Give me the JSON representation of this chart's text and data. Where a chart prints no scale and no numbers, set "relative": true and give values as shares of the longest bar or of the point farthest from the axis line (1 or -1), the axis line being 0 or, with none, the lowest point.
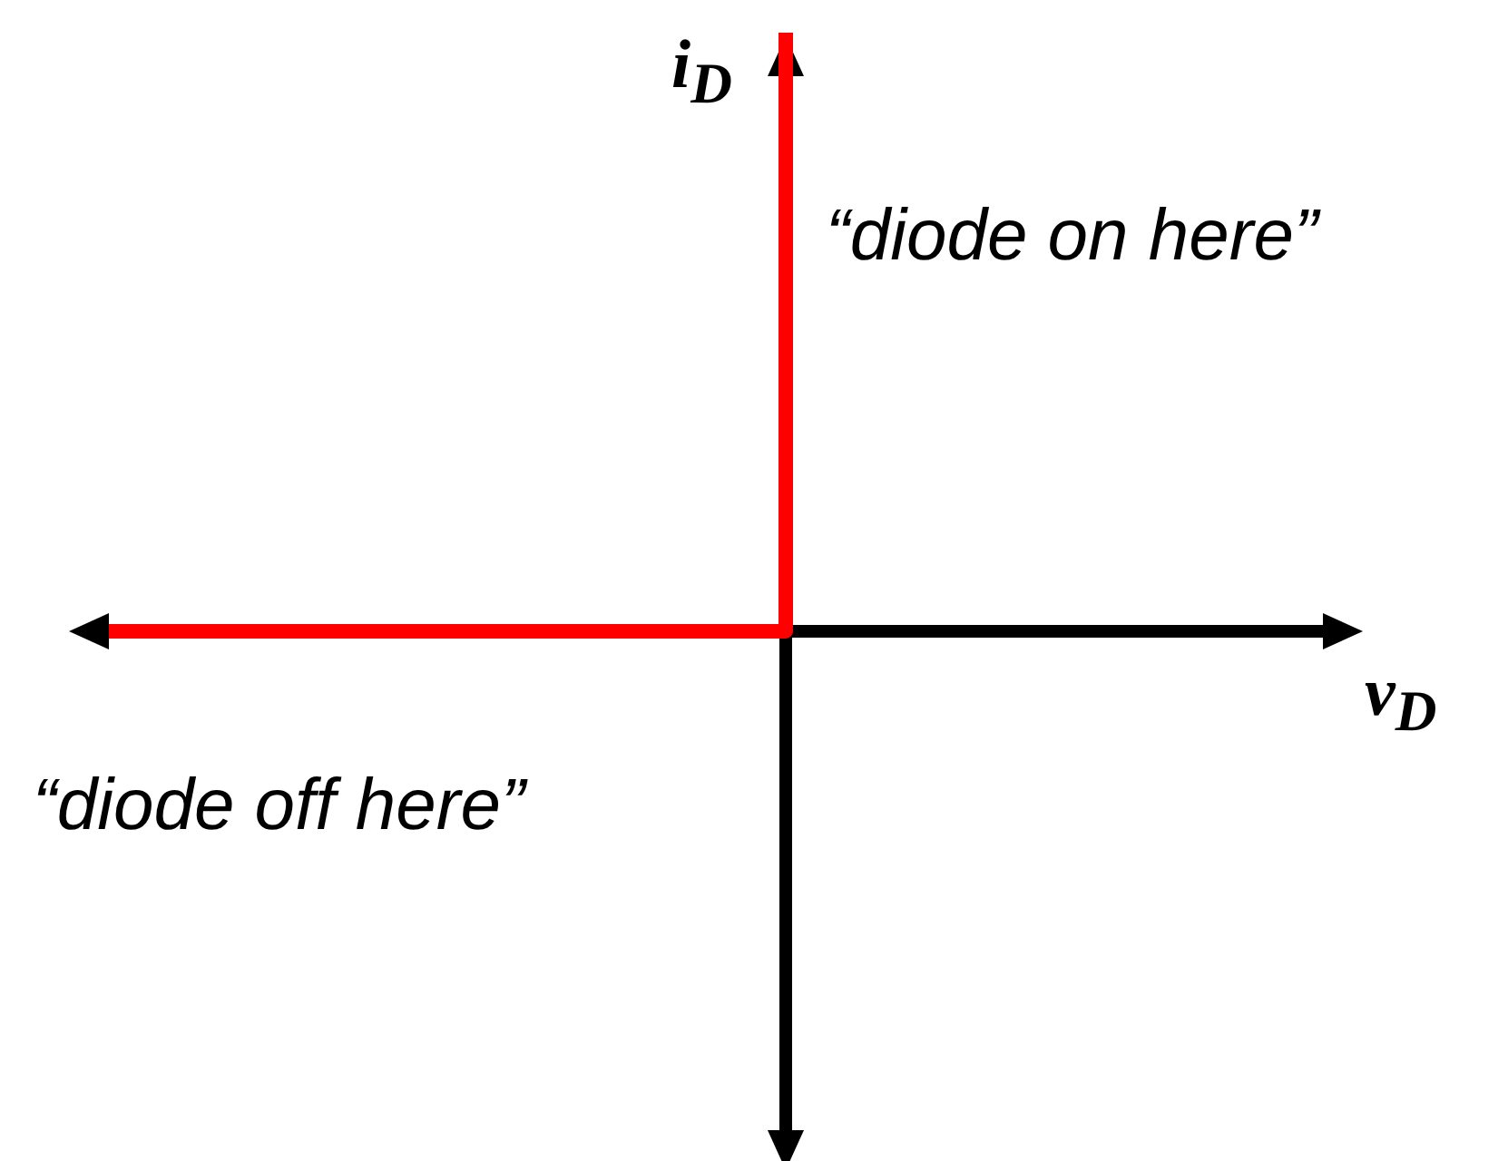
{
  "chart_data": {
    "type": "step",
    "relative": true,
    "xlabel": "v$_{D}$",
    "ylabel": "i$_{D}$",
    "annotations": [
      "“diode on here”",
      "“diode off here”"
    ],
    "categories": [
      null,
      null
    ],
    "series": [
      {
        "color": "#ff0000",
        "values": [
          0,
          1
        ]
      }
    ]
  }
}
